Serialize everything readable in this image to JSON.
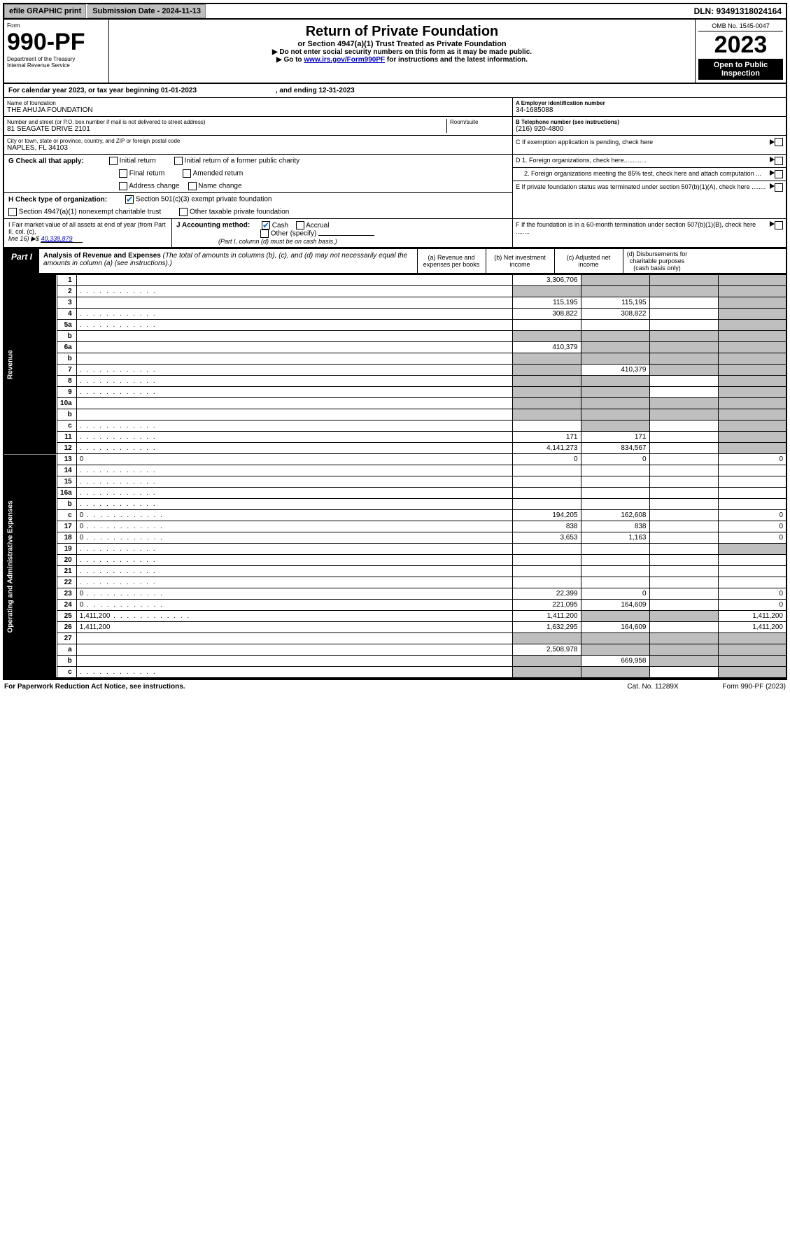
{
  "topbar": {
    "efile": "efile GRAPHIC print",
    "submission": "Submission Date - 2024-11-13",
    "dln": "DLN: 93491318024164"
  },
  "header": {
    "form_word": "Form",
    "form_no": "990-PF",
    "dept": "Department of the Treasury",
    "irs": "Internal Revenue Service",
    "title": "Return of Private Foundation",
    "subtitle": "or Section 4947(a)(1) Trust Treated as Private Foundation",
    "note1": "▶ Do not enter social security numbers on this form as it may be made public.",
    "note2_pre": "▶ Go to ",
    "note2_link": "www.irs.gov/Form990PF",
    "note2_post": " for instructions and the latest information.",
    "omb": "OMB No. 1545-0047",
    "year": "2023",
    "inspect": "Open to Public Inspection"
  },
  "cal": {
    "text_a": "For calendar year 2023, or tax year beginning 01-01-2023",
    "text_b": ", and ending 12-31-2023"
  },
  "id": {
    "name_lbl": "Name of foundation",
    "name": "THE AHUJA FOUNDATION",
    "addr_lbl": "Number and street (or P.O. box number if mail is not delivered to street address)",
    "addr": "81 SEAGATE DRIVE 2101",
    "room_lbl": "Room/suite",
    "city_lbl": "City or town, state or province, country, and ZIP or foreign postal code",
    "city": "NAPLES, FL  34103",
    "A_lbl": "A Employer identification number",
    "A": "34-1685088",
    "B_lbl": "B Telephone number (see instructions)",
    "B": "(216) 920-4800",
    "C": "C If exemption application is pending, check here",
    "D1": "D 1. Foreign organizations, check here.............",
    "D2": "2. Foreign organizations meeting the 85% test, check here and attach computation ...",
    "E": "E  If private foundation status was terminated under section 507(b)(1)(A), check here ........",
    "F": "F  If the foundation is in a 60-month termination under section 507(b)(1)(B), check here ........"
  },
  "G": {
    "lbl": "G Check all that apply:",
    "opts": [
      "Initial return",
      "Initial return of a former public charity",
      "Final return",
      "Amended return",
      "Address change",
      "Name change"
    ]
  },
  "H": {
    "lbl": "H Check type of organization:",
    "a": "Section 501(c)(3) exempt private foundation",
    "b": "Section 4947(a)(1) nonexempt charitable trust",
    "c": "Other taxable private foundation"
  },
  "I": {
    "lbl1": "I Fair market value of all assets at end of year (from Part II, col. (c),",
    "lbl2": "line 16) ▶$ ",
    "val": "40,338,879"
  },
  "J": {
    "lbl": "J Accounting method:",
    "cash": "Cash",
    "accrual": "Accrual",
    "other": "Other (specify)",
    "note": "(Part I, column (d) must be on cash basis.)"
  },
  "part1": {
    "lbl": "Part I",
    "title": "Analysis of Revenue and Expenses",
    "desc": " (The total of amounts in columns (b), (c), and (d) may not necessarily equal the amounts in column (a) (see instructions).)",
    "cols": {
      "a": "(a) Revenue and expenses per books",
      "b": "(b) Net investment income",
      "c": "(c) Adjusted net income",
      "d": "(d) Disbursements for charitable purposes (cash basis only)"
    }
  },
  "side": {
    "rev": "Revenue",
    "exp": "Operating and Administrative Expenses"
  },
  "rows": [
    {
      "n": "1",
      "d": "",
      "a": "3,306,706",
      "b": "",
      "c": "",
      "sa": false,
      "sb": true,
      "sc": true,
      "sd": true
    },
    {
      "n": "2",
      "d": "",
      "dots": true,
      "a": "",
      "b": "",
      "c": "",
      "sa": true,
      "sb": true,
      "sc": true,
      "sd": true
    },
    {
      "n": "3",
      "d": "",
      "a": "115,195",
      "b": "115,195",
      "c": "",
      "sd": true
    },
    {
      "n": "4",
      "d": "",
      "dots": true,
      "a": "308,822",
      "b": "308,822",
      "c": "",
      "sd": true
    },
    {
      "n": "5a",
      "d": "",
      "dots": true,
      "a": "",
      "b": "",
      "c": "",
      "sd": true
    },
    {
      "n": "b",
      "d": "",
      "a": "",
      "b": "",
      "c": "",
      "sa": true,
      "sb": true,
      "sc": true,
      "sd": true
    },
    {
      "n": "6a",
      "d": "",
      "a": "410,379",
      "b": "",
      "c": "",
      "sb": true,
      "sc": true,
      "sd": true
    },
    {
      "n": "b",
      "d": "",
      "a": "",
      "b": "",
      "c": "",
      "sa": true,
      "sb": true,
      "sc": true,
      "sd": true
    },
    {
      "n": "7",
      "d": "",
      "dots": true,
      "a": "",
      "b": "410,379",
      "c": "",
      "sa": true,
      "sc": true,
      "sd": true
    },
    {
      "n": "8",
      "d": "",
      "dots": true,
      "a": "",
      "b": "",
      "c": "",
      "sa": true,
      "sb": true,
      "sd": true
    },
    {
      "n": "9",
      "d": "",
      "dots": true,
      "a": "",
      "b": "",
      "c": "",
      "sa": true,
      "sb": true,
      "sd": true
    },
    {
      "n": "10a",
      "d": "",
      "a": "",
      "b": "",
      "c": "",
      "sa": true,
      "sb": true,
      "sc": true,
      "sd": true
    },
    {
      "n": "b",
      "d": "",
      "a": "",
      "b": "",
      "c": "",
      "sa": true,
      "sb": true,
      "sc": true,
      "sd": true
    },
    {
      "n": "c",
      "d": "",
      "dots": true,
      "a": "",
      "b": "",
      "c": "",
      "sb": true,
      "sd": true
    },
    {
      "n": "11",
      "d": "",
      "dots": true,
      "a": "171",
      "b": "171",
      "c": "",
      "sd": true
    },
    {
      "n": "12",
      "d": "",
      "dots": true,
      "a": "4,141,273",
      "b": "834,567",
      "c": "",
      "sd": true
    },
    {
      "n": "13",
      "d": "0",
      "a": "0",
      "b": "0",
      "c": ""
    },
    {
      "n": "14",
      "d": "",
      "dots": true,
      "a": "",
      "b": "",
      "c": ""
    },
    {
      "n": "15",
      "d": "",
      "dots": true,
      "a": "",
      "b": "",
      "c": ""
    },
    {
      "n": "16a",
      "d": "",
      "dots": true,
      "a": "",
      "b": "",
      "c": ""
    },
    {
      "n": "b",
      "d": "",
      "dots": true,
      "a": "",
      "b": "",
      "c": ""
    },
    {
      "n": "c",
      "d": "0",
      "dots": true,
      "a": "194,205",
      "b": "162,608",
      "c": ""
    },
    {
      "n": "17",
      "d": "0",
      "dots": true,
      "a": "838",
      "b": "838",
      "c": ""
    },
    {
      "n": "18",
      "d": "0",
      "dots": true,
      "a": "3,653",
      "b": "1,163",
      "c": ""
    },
    {
      "n": "19",
      "d": "",
      "dots": true,
      "a": "",
      "b": "",
      "c": "",
      "sd": true
    },
    {
      "n": "20",
      "d": "",
      "dots": true,
      "a": "",
      "b": "",
      "c": ""
    },
    {
      "n": "21",
      "d": "",
      "dots": true,
      "a": "",
      "b": "",
      "c": ""
    },
    {
      "n": "22",
      "d": "",
      "dots": true,
      "a": "",
      "b": "",
      "c": ""
    },
    {
      "n": "23",
      "d": "0",
      "dots": true,
      "a": "22,399",
      "b": "0",
      "c": ""
    },
    {
      "n": "24",
      "d": "0",
      "dots": true,
      "a": "221,095",
      "b": "164,609",
      "c": ""
    },
    {
      "n": "25",
      "d": "1,411,200",
      "dots": true,
      "a": "1,411,200",
      "b": "",
      "c": "",
      "sb": true,
      "sc": true
    },
    {
      "n": "26",
      "d": "1,411,200",
      "a": "1,632,295",
      "b": "164,609",
      "c": ""
    },
    {
      "n": "27",
      "d": "",
      "a": "",
      "b": "",
      "c": "",
      "sa": true,
      "sb": true,
      "sc": true,
      "sd": true
    },
    {
      "n": "a",
      "d": "",
      "a": "2,508,978",
      "b": "",
      "c": "",
      "sb": true,
      "sc": true,
      "sd": true
    },
    {
      "n": "b",
      "d": "",
      "a": "",
      "b": "669,958",
      "c": "",
      "sa": true,
      "sc": true,
      "sd": true
    },
    {
      "n": "c",
      "d": "",
      "dots": true,
      "a": "",
      "b": "",
      "c": "",
      "sa": true,
      "sb": true,
      "sd": true
    }
  ],
  "footer": {
    "left": "For Paperwork Reduction Act Notice, see instructions.",
    "mid": "Cat. No. 11289X",
    "right": "Form 990-PF (2023)"
  }
}
